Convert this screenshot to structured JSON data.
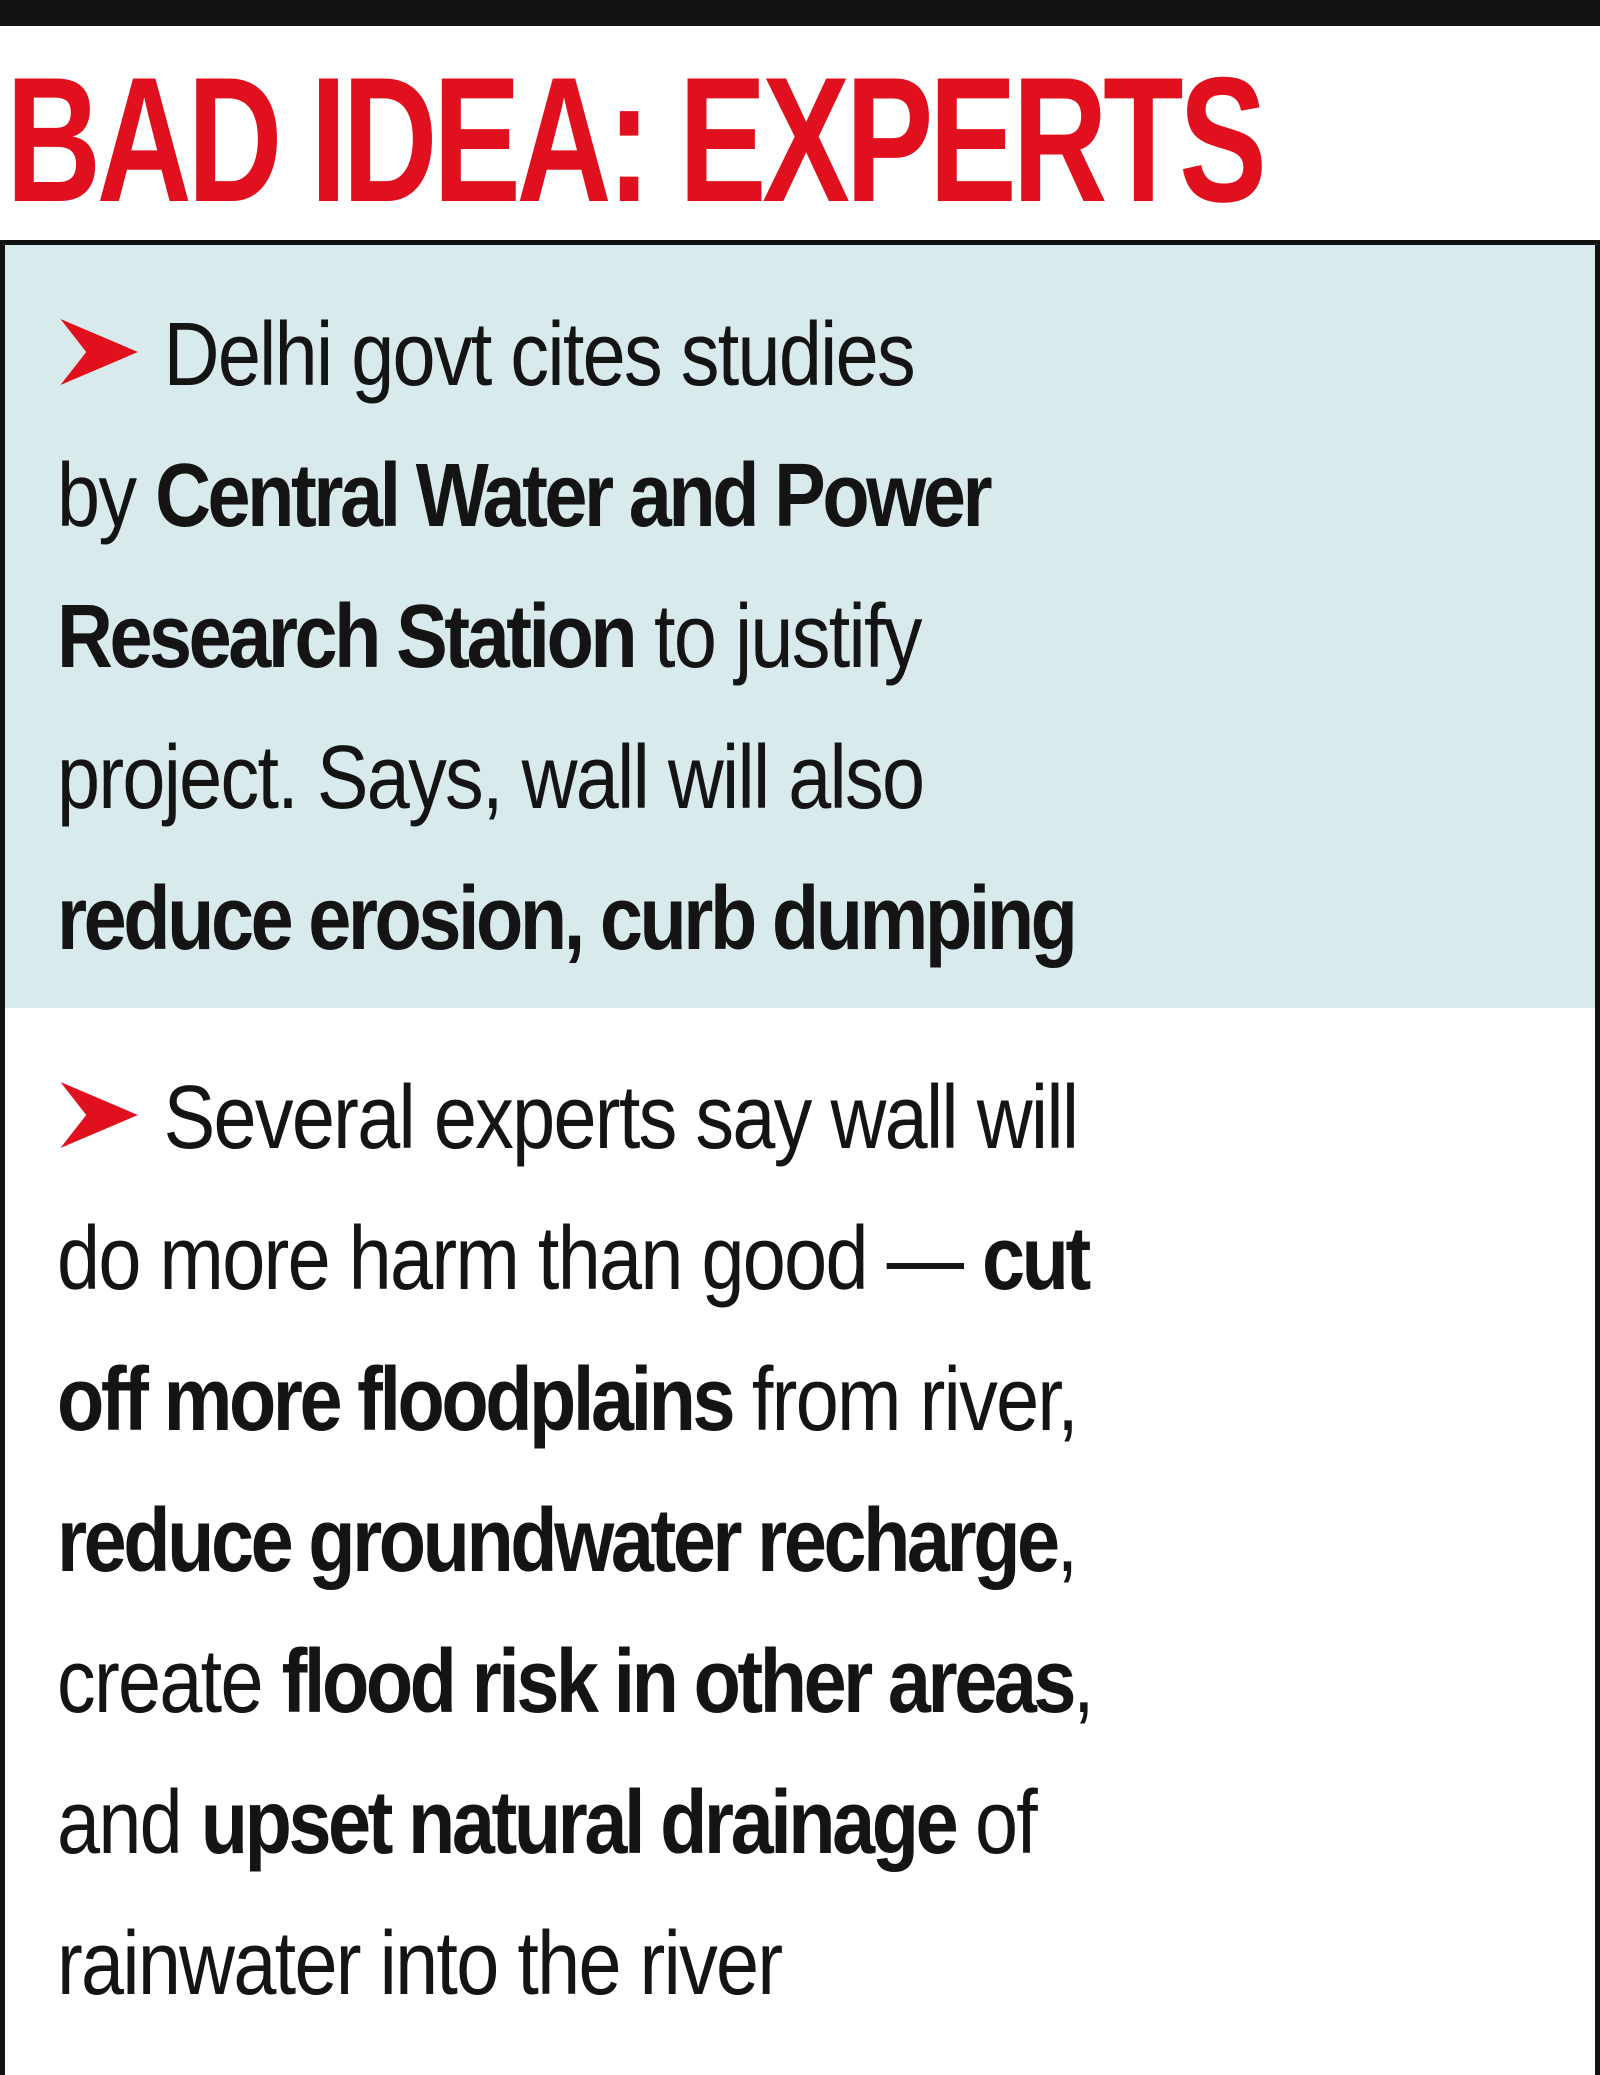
{
  "header": {
    "title": "BAD IDEA: EXPERTS"
  },
  "colors": {
    "headline": "#e0101e",
    "bullet": "#e0101e",
    "panel_1_background": "#d9eaec",
    "panel_2_background": "#ffffff",
    "text": "#141414",
    "rule": "#111111"
  },
  "icons": {
    "bullet": "red-arrowhead-icon"
  },
  "points": [
    {
      "lines": [
        [
          {
            "text": "Delhi govt cites studies",
            "bold": false
          }
        ],
        [
          {
            "text": "by ",
            "bold": false
          },
          {
            "text": "Central Water and Power",
            "bold": true
          }
        ],
        [
          {
            "text": "Research Station",
            "bold": true
          },
          {
            "text": " to justify",
            "bold": false
          }
        ],
        [
          {
            "text": "project. Says, wall will also",
            "bold": false
          }
        ],
        [
          {
            "text": "reduce erosion, curb dumping",
            "bold": true
          }
        ]
      ]
    },
    {
      "lines": [
        [
          {
            "text": "Several experts say wall will",
            "bold": false
          }
        ],
        [
          {
            "text": "do more harm than good — ",
            "bold": false
          },
          {
            "text": "cut",
            "bold": true
          }
        ],
        [
          {
            "text": "off more floodplains",
            "bold": true
          },
          {
            "text": " from river,",
            "bold": false
          }
        ],
        [
          {
            "text": "reduce groundwater recharge",
            "bold": true
          },
          {
            "text": ",",
            "bold": false
          }
        ],
        [
          {
            "text": "create ",
            "bold": false
          },
          {
            "text": "flood risk in other areas",
            "bold": true
          },
          {
            "text": ",",
            "bold": false
          }
        ],
        [
          {
            "text": "and ",
            "bold": false
          },
          {
            "text": "upset natural drainage",
            "bold": true
          },
          {
            "text": " of",
            "bold": false
          }
        ],
        [
          {
            "text": "rainwater into the river",
            "bold": false
          }
        ]
      ]
    }
  ]
}
